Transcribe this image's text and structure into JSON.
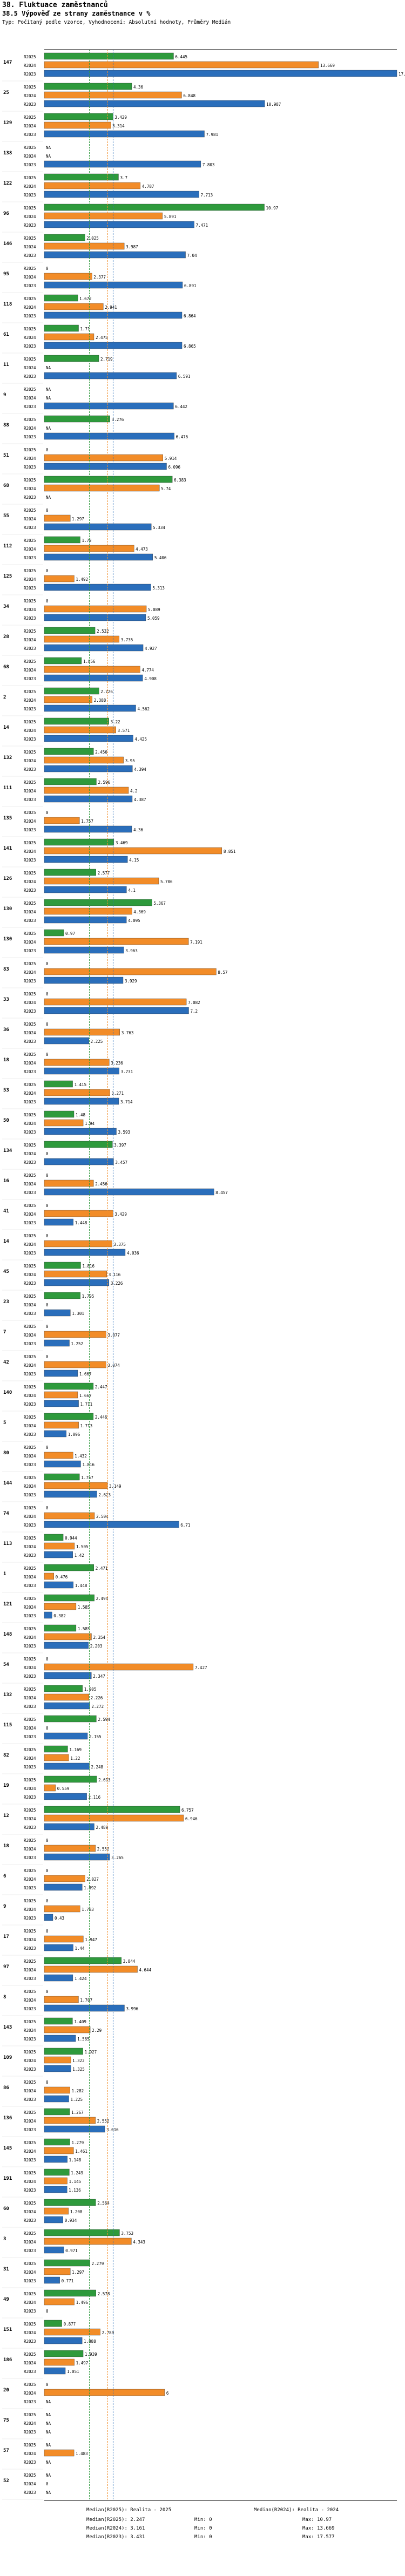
{
  "header": {
    "title": "38. Fluktuace zaměstnanců",
    "subtitle": "38.5 Výpověď ze strany zaměstnance v %",
    "note": "Typ: Počítaný podle vzorce, Vyhodnocení: Absolutní hodnoty, Průměry Medián"
  },
  "colors": {
    "r2025": "#2e9a3c",
    "r2024": "#f28c28",
    "r2023": "#2a6ebb",
    "median_line_2025": "#2e9a3c",
    "median_line_2024": "#f28c28",
    "median_line_2023": "#2a6ebb"
  },
  "chart_data": {
    "type": "bar",
    "orientation": "horizontal",
    "title": "38.5 Výpověď ze strany zaměstnance v %",
    "series_names": [
      "R2025",
      "R2024",
      "R2023"
    ],
    "x_range": [
      0,
      17.577
    ],
    "groups": [
      {
        "id": "147",
        "values": [
          6.445,
          13.669,
          17.577
        ]
      },
      {
        "id": "25",
        "values": [
          4.36,
          6.848,
          10.987
        ]
      },
      {
        "id": "129",
        "values": [
          3.429,
          3.314,
          7.981
        ]
      },
      {
        "id": "138",
        "values": [
          "NA",
          "NA",
          7.803
        ]
      },
      {
        "id": "122",
        "values": [
          3.7,
          4.787,
          7.713
        ]
      },
      {
        "id": "96",
        "values": [
          10.97,
          5.891,
          7.471
        ]
      },
      {
        "id": "146",
        "values": [
          2.025,
          3.987,
          7.04
        ]
      },
      {
        "id": "95",
        "values": [
          0,
          2.377,
          6.891
        ]
      },
      {
        "id": "118",
        "values": [
          1.672,
          2.941,
          6.864
        ]
      },
      {
        "id": "61",
        "values": [
          1.71,
          2.475,
          6.865
        ]
      },
      {
        "id": "11",
        "values": [
          2.719,
          "NA",
          6.591
        ]
      },
      {
        "id": "9",
        "values": [
          "NA",
          "NA",
          6.442
        ]
      },
      {
        "id": "88",
        "values": [
          3.276,
          "NA",
          6.476
        ]
      },
      {
        "id": "51",
        "values": [
          0,
          5.914,
          6.096
        ]
      },
      {
        "id": "68",
        "values": [
          6.383,
          5.74,
          "NA"
        ]
      },
      {
        "id": "55",
        "values": [
          0,
          1.297,
          5.334
        ]
      },
      {
        "id": "112",
        "values": [
          1.79,
          4.473,
          5.406
        ]
      },
      {
        "id": "125",
        "values": [
          0,
          1.492,
          5.313
        ]
      },
      {
        "id": "34",
        "values": [
          0,
          5.089,
          5.059
        ]
      },
      {
        "id": "28",
        "values": [
          2.532,
          3.735,
          4.927
        ]
      },
      {
        "id": "68b",
        "values": [
          1.856,
          4.774,
          4.908
        ]
      },
      {
        "id": "2",
        "values": [
          2.726,
          2.388,
          4.562
        ]
      },
      {
        "id": "14",
        "values": [
          3.22,
          3.571,
          4.425
        ]
      },
      {
        "id": "132",
        "values": [
          2.456,
          3.95,
          4.394
        ]
      },
      {
        "id": "111",
        "values": [
          2.596,
          4.2,
          4.387
        ]
      },
      {
        "id": "135",
        "values": [
          0,
          1.757,
          4.36
        ]
      },
      {
        "id": "141",
        "values": [
          3.469,
          8.851,
          4.15
        ]
      },
      {
        "id": "126",
        "values": [
          2.577,
          5.706,
          4.1
        ]
      },
      {
        "id": "130",
        "values": [
          5.367,
          4.369,
          4.095
        ]
      },
      {
        "id": "130b",
        "values": [
          0.97,
          7.191,
          3.963
        ]
      },
      {
        "id": "83",
        "values": [
          0,
          8.57,
          3.929
        ]
      },
      {
        "id": "33",
        "values": [
          0,
          7.082,
          7.2
        ]
      },
      {
        "id": "36",
        "values": [
          0,
          3.763,
          2.225
        ]
      },
      {
        "id": "18",
        "values": [
          0,
          3.236,
          3.731
        ]
      },
      {
        "id": "53",
        "values": [
          1.415,
          3.271,
          3.714
        ]
      },
      {
        "id": "50",
        "values": [
          1.48,
          1.94,
          3.593
        ]
      },
      {
        "id": "134",
        "values": [
          3.397,
          0,
          3.457
        ]
      },
      {
        "id": "16",
        "values": [
          0,
          2.456,
          8.457
        ]
      },
      {
        "id": "41",
        "values": [
          0,
          3.429,
          1.448
        ]
      },
      {
        "id": "14b",
        "values": [
          0,
          3.375,
          4.036
        ]
      },
      {
        "id": "45",
        "values": [
          1.816,
          3.116,
          3.226
        ]
      },
      {
        "id": "23",
        "values": [
          1.795,
          0,
          1.301
        ]
      },
      {
        "id": "7",
        "values": [
          0,
          3.077,
          1.252
        ]
      },
      {
        "id": "42",
        "values": [
          0,
          3.074,
          1.667
        ]
      },
      {
        "id": "140",
        "values": [
          2.447,
          1.667,
          1.711
        ]
      },
      {
        "id": "5",
        "values": [
          2.446,
          1.713,
          1.096
        ]
      },
      {
        "id": "80",
        "values": [
          0,
          1.432,
          1.816
        ]
      },
      {
        "id": "144",
        "values": [
          1.757,
          3.149,
          2.623
        ]
      },
      {
        "id": "74",
        "values": [
          0,
          2.504,
          6.71
        ]
      },
      {
        "id": "113",
        "values": [
          0.944,
          1.505,
          1.42
        ]
      },
      {
        "id": "1",
        "values": [
          2.471,
          0.476,
          1.448
        ]
      },
      {
        "id": "121",
        "values": [
          2.494,
          1.585,
          0.382
        ]
      },
      {
        "id": "148",
        "values": [
          1.585,
          2.354,
          2.203
        ]
      },
      {
        "id": "54",
        "values": [
          0,
          7.427,
          2.347
        ]
      },
      {
        "id": "132b",
        "values": [
          1.905,
          2.226,
          2.272
        ]
      },
      {
        "id": "115",
        "values": [
          2.594,
          0,
          2.155
        ]
      },
      {
        "id": "82",
        "values": [
          1.169,
          1.22,
          2.248
        ]
      },
      {
        "id": "19",
        "values": [
          2.613,
          0.559,
          2.116
        ]
      },
      {
        "id": "12",
        "values": [
          6.757,
          6.946,
          2.489
        ]
      },
      {
        "id": "18b",
        "values": [
          0,
          2.552,
          3.265
        ]
      },
      {
        "id": "6",
        "values": [
          0,
          2.027,
          1.892
        ]
      },
      {
        "id": "9b",
        "values": [
          0,
          1.783,
          0.43
        ]
      },
      {
        "id": "17",
        "values": [
          0,
          1.947,
          1.44
        ]
      },
      {
        "id": "97",
        "values": [
          3.844,
          4.644,
          1.424
        ]
      },
      {
        "id": "8",
        "values": [
          0,
          1.707,
          3.996
        ]
      },
      {
        "id": "143",
        "values": [
          1.409,
          2.29,
          1.565
        ]
      },
      {
        "id": "109",
        "values": [
          1.927,
          1.322,
          1.325
        ]
      },
      {
        "id": "86",
        "values": [
          0,
          1.282,
          1.225
        ]
      },
      {
        "id": "136",
        "values": [
          1.267,
          2.552,
          3.016
        ]
      },
      {
        "id": "145",
        "values": [
          1.279,
          1.461,
          1.148
        ]
      },
      {
        "id": "191",
        "values": [
          1.249,
          1.145,
          1.136
        ]
      },
      {
        "id": "60",
        "values": [
          2.564,
          1.208,
          0.934
        ]
      },
      {
        "id": "3",
        "values": [
          3.753,
          4.343,
          0.971
        ]
      },
      {
        "id": "31",
        "values": [
          2.279,
          1.297,
          0.771
        ]
      },
      {
        "id": "49",
        "values": [
          2.578,
          1.496,
          0
        ]
      },
      {
        "id": "151",
        "values": [
          0.877,
          2.789,
          1.888
        ]
      },
      {
        "id": "186",
        "values": [
          1.939,
          1.497,
          1.051
        ]
      },
      {
        "id": "20",
        "values": [
          0,
          6.0,
          "NA"
        ]
      },
      {
        "id": "75",
        "values": [
          "NA",
          "NA",
          "NA"
        ]
      },
      {
        "id": "57",
        "values": [
          "NA",
          1.483,
          "NA"
        ]
      },
      {
        "id": "52",
        "values": [
          "NA",
          0,
          "NA"
        ]
      }
    ],
    "medians": {
      "R2025": 2.247,
      "R2024": 3.161,
      "R2023": 3.431
    },
    "mins": {
      "R2025": 0,
      "R2024": 0,
      "R2023": 0
    },
    "maxs": {
      "R2025": 10.97,
      "R2024": 13.669,
      "R2023": 17.577
    }
  },
  "legend": {
    "items": [
      {
        "label": "Median(R2025): 2.247"
      },
      {
        "label": "Median(R2024): 3.161"
      },
      {
        "label": "Median(R2023): 3.431"
      },
      {
        "label": "Min: 0"
      },
      {
        "label": "Min: 0"
      },
      {
        "label": "Min: 0"
      },
      {
        "label": "Max: 10.97"
      },
      {
        "label": "Max: 13.669"
      },
      {
        "label": "Max: 17.577"
      }
    ],
    "notes": [
      {
        "label": "Median(R2025): Realita - 2025"
      },
      {
        "label": "Median(R2024): Realita - 2024"
      }
    ]
  }
}
